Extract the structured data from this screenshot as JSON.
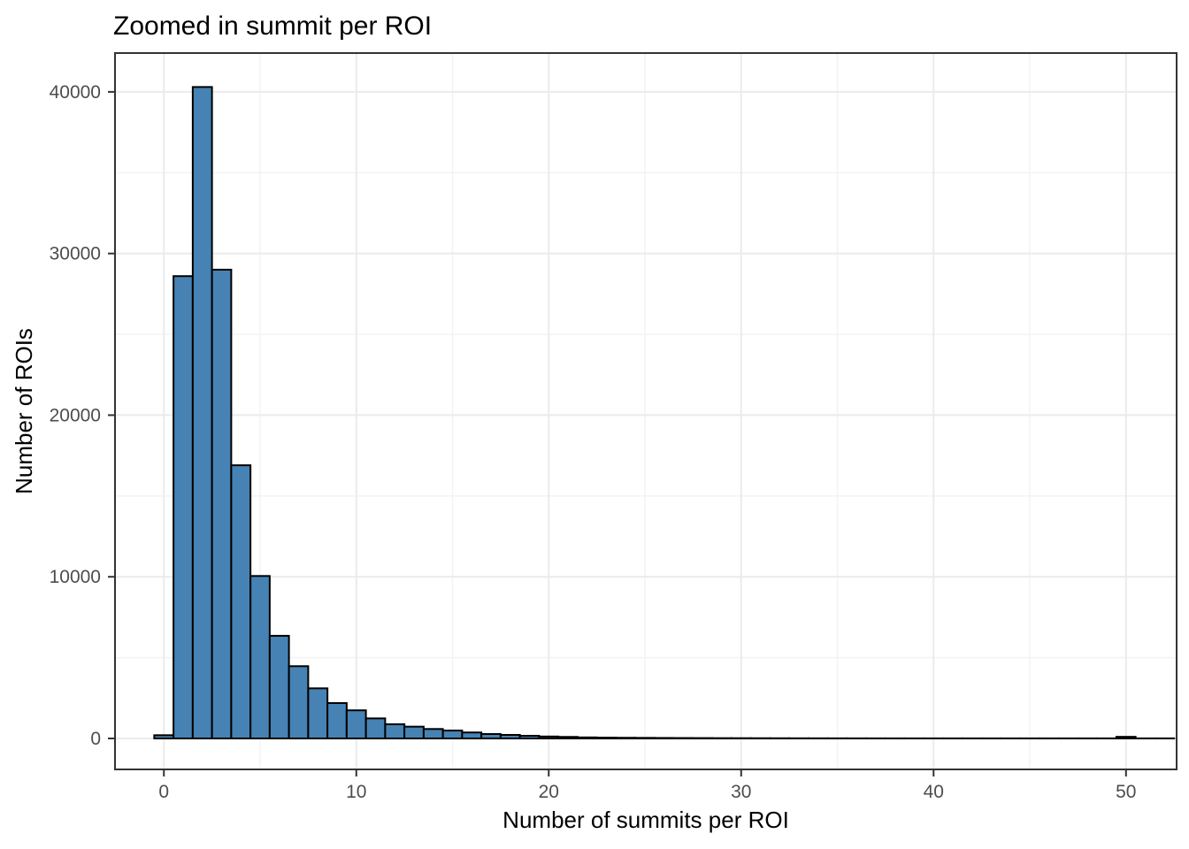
{
  "page": {
    "background_color": "#ffffff"
  },
  "chart_data": {
    "type": "bar",
    "subtype": "histogram",
    "title": "Zoomed in summit per ROI",
    "xlabel": "Number of summits per ROI",
    "ylabel": "Number of ROIs",
    "legend_position": "none",
    "grid": true,
    "binwidth": 1,
    "xlim": [
      -2.54,
      52.63
    ],
    "ylim": [
      -1915,
      42400
    ],
    "x_ticks": [
      0,
      10,
      20,
      30,
      40,
      50
    ],
    "y_ticks": [
      0,
      10000,
      20000,
      30000,
      40000
    ],
    "x_minor_gridlines": [
      5,
      15,
      25,
      35,
      45
    ],
    "y_minor_gridlines": [
      5000,
      15000,
      25000,
      35000
    ],
    "bin_centers": [
      0,
      1,
      2,
      3,
      4,
      5,
      6,
      7,
      8,
      9,
      10,
      11,
      12,
      13,
      14,
      15,
      16,
      17,
      18,
      19,
      20,
      21,
      22,
      23,
      24,
      25,
      26,
      27,
      28,
      29,
      30,
      31,
      32,
      33,
      34,
      35,
      36,
      37,
      38,
      39,
      40,
      41,
      42,
      43,
      44,
      45,
      46,
      47,
      48,
      49,
      50,
      51,
      52
    ],
    "counts": [
      200,
      28600,
      40300,
      29000,
      16900,
      10050,
      6350,
      4470,
      3100,
      2190,
      1740,
      1240,
      880,
      730,
      585,
      490,
      370,
      275,
      220,
      165,
      120,
      95,
      65,
      50,
      42,
      36,
      30,
      26,
      22,
      18,
      16,
      14,
      12,
      10,
      9,
      8,
      7,
      6,
      5,
      5,
      4,
      4,
      3,
      3,
      2,
      2,
      2,
      1,
      0,
      0,
      100,
      0,
      0
    ],
    "colors": {
      "bar_fill": "#4682B4",
      "bar_stroke": "#000000",
      "panel_background": "#ffffff",
      "panel_border": "#333333",
      "grid_major": "#ebebeb",
      "grid_minor": "#f3f3f3",
      "tick_mark": "#333333",
      "tick_text": "#4d4d4d",
      "title_text": "#000000"
    }
  }
}
